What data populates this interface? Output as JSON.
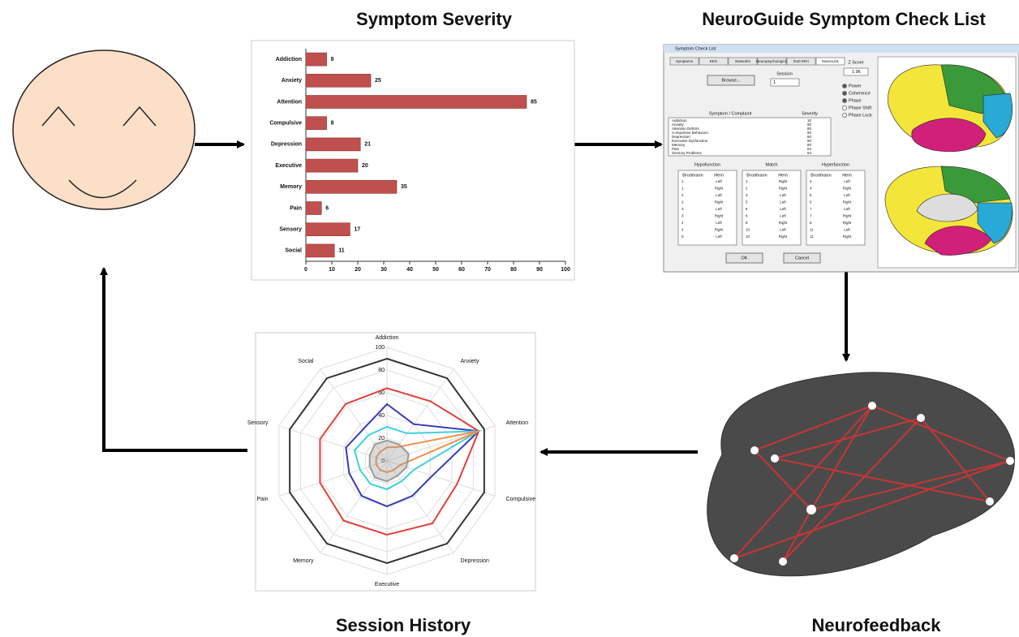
{
  "titles": {
    "symptom_severity": "Symptom Severity",
    "check_list": "NeuroGuide Symptom Check List",
    "session_history": "Session History",
    "neurofeedback": "Neurofeedback"
  },
  "chart_data": [
    {
      "type": "bar",
      "horizontal": true,
      "color": "#c0504d",
      "categories": [
        "Addiction",
        "Anxiety",
        "Attention",
        "Compulsive",
        "Depression",
        "Executive",
        "Memory",
        "Pain",
        "Sensory",
        "Social"
      ],
      "values": [
        8,
        25,
        85,
        8,
        21,
        20,
        35,
        6,
        17,
        11
      ],
      "xlim": [
        0,
        100
      ],
      "xticks": [
        0,
        10,
        20,
        30,
        40,
        50,
        60,
        70,
        80,
        90,
        100
      ]
    },
    {
      "type": "radar",
      "categories": [
        "Addiction",
        "Anxiety",
        "Attention",
        "Compulsive",
        "Depression",
        "Executive",
        "Memory",
        "Pain",
        "Sensory",
        "Social"
      ],
      "rlim": [
        0,
        100
      ],
      "rticks": [
        0,
        20,
        40,
        60,
        80,
        100
      ],
      "grid": true,
      "series": [
        {
          "color": "#333333",
          "values": [
            90,
            90,
            90,
            90,
            90,
            90,
            90,
            90,
            90,
            90
          ]
        },
        {
          "color": "#e0403a",
          "values": [
            64,
            65,
            85,
            65,
            68,
            65,
            65,
            62,
            62,
            62
          ]
        },
        {
          "color": "#3a3ab8",
          "values": [
            50,
            40,
            85,
            42,
            38,
            40,
            38,
            35,
            38,
            35
          ]
        },
        {
          "color": "#40d0e0",
          "values": [
            30,
            30,
            85,
            25,
            22,
            25,
            25,
            25,
            30,
            28
          ]
        },
        {
          "color": "#f0904a",
          "values": [
            12,
            15,
            85,
            12,
            10,
            10,
            10,
            10,
            10,
            10
          ]
        },
        {
          "color": "#999999",
          "fill": true,
          "values": [
            18,
            18,
            20,
            18,
            16,
            18,
            18,
            16,
            16,
            18
          ]
        }
      ]
    }
  ],
  "check_list_window": {
    "window_title": "Symptom Check List",
    "tabs": [
      "Symptoms",
      "EEG",
      "Networks",
      "Neuropsychological",
      "DoD ERA",
      "NeuroLink"
    ],
    "browse": "Browse...",
    "session_label": "Session",
    "session_value": "1",
    "z_score": "Z Score",
    "z_value": "1.96",
    "options": [
      "Power",
      "Coherence",
      "Phase",
      "Phase Shift",
      "Phase Lock"
    ],
    "list_header": [
      "Symptom / Complaint",
      "Severity"
    ],
    "symptoms": [
      [
        "Addiction",
        10
      ],
      [
        "Anxiety",
        90
      ],
      [
        "Attention Deficits",
        80
      ],
      [
        "Compulsive Behaviors",
        90
      ],
      [
        "Depression",
        80
      ],
      [
        "Executive Dysfunction",
        90
      ],
      [
        "Memory",
        80
      ],
      [
        "Pain",
        84
      ],
      [
        "Sensory Problems",
        84
      ]
    ],
    "tables": [
      {
        "title": "Hypofunction",
        "header": [
          "Brodmann",
          "Hem"
        ],
        "rows": [
          [
            1,
            "Left"
          ],
          [
            1,
            "Right"
          ],
          [
            2,
            "Left"
          ],
          [
            2,
            "Right"
          ],
          [
            3,
            "Left"
          ],
          [
            3,
            "Right"
          ],
          [
            4,
            "Left"
          ],
          [
            4,
            "Right"
          ],
          [
            5,
            "Left"
          ]
        ]
      },
      {
        "title": "Match",
        "header": [
          "Brodmann",
          "Hem"
        ],
        "rows": [
          [
            1,
            "Right"
          ],
          [
            2,
            "Right"
          ],
          [
            3,
            "Left"
          ],
          [
            5,
            "Left"
          ],
          [
            6,
            "Left"
          ],
          [
            8,
            "Left"
          ],
          [
            9,
            "Right"
          ],
          [
            10,
            "Left"
          ],
          [
            10,
            "Right"
          ]
        ]
      },
      {
        "title": "Hyperfunction",
        "header": [
          "Brodmann",
          "Hem"
        ],
        "rows": [
          [
            4,
            "Left"
          ],
          [
            4,
            "Right"
          ],
          [
            5,
            "Left"
          ],
          [
            6,
            "Right"
          ],
          [
            7,
            "Left"
          ],
          [
            7,
            "Right"
          ],
          [
            8,
            "Right"
          ],
          [
            11,
            "Left"
          ],
          [
            11,
            "Right"
          ]
        ]
      }
    ],
    "ok": "OK",
    "cancel": "Cancel"
  }
}
